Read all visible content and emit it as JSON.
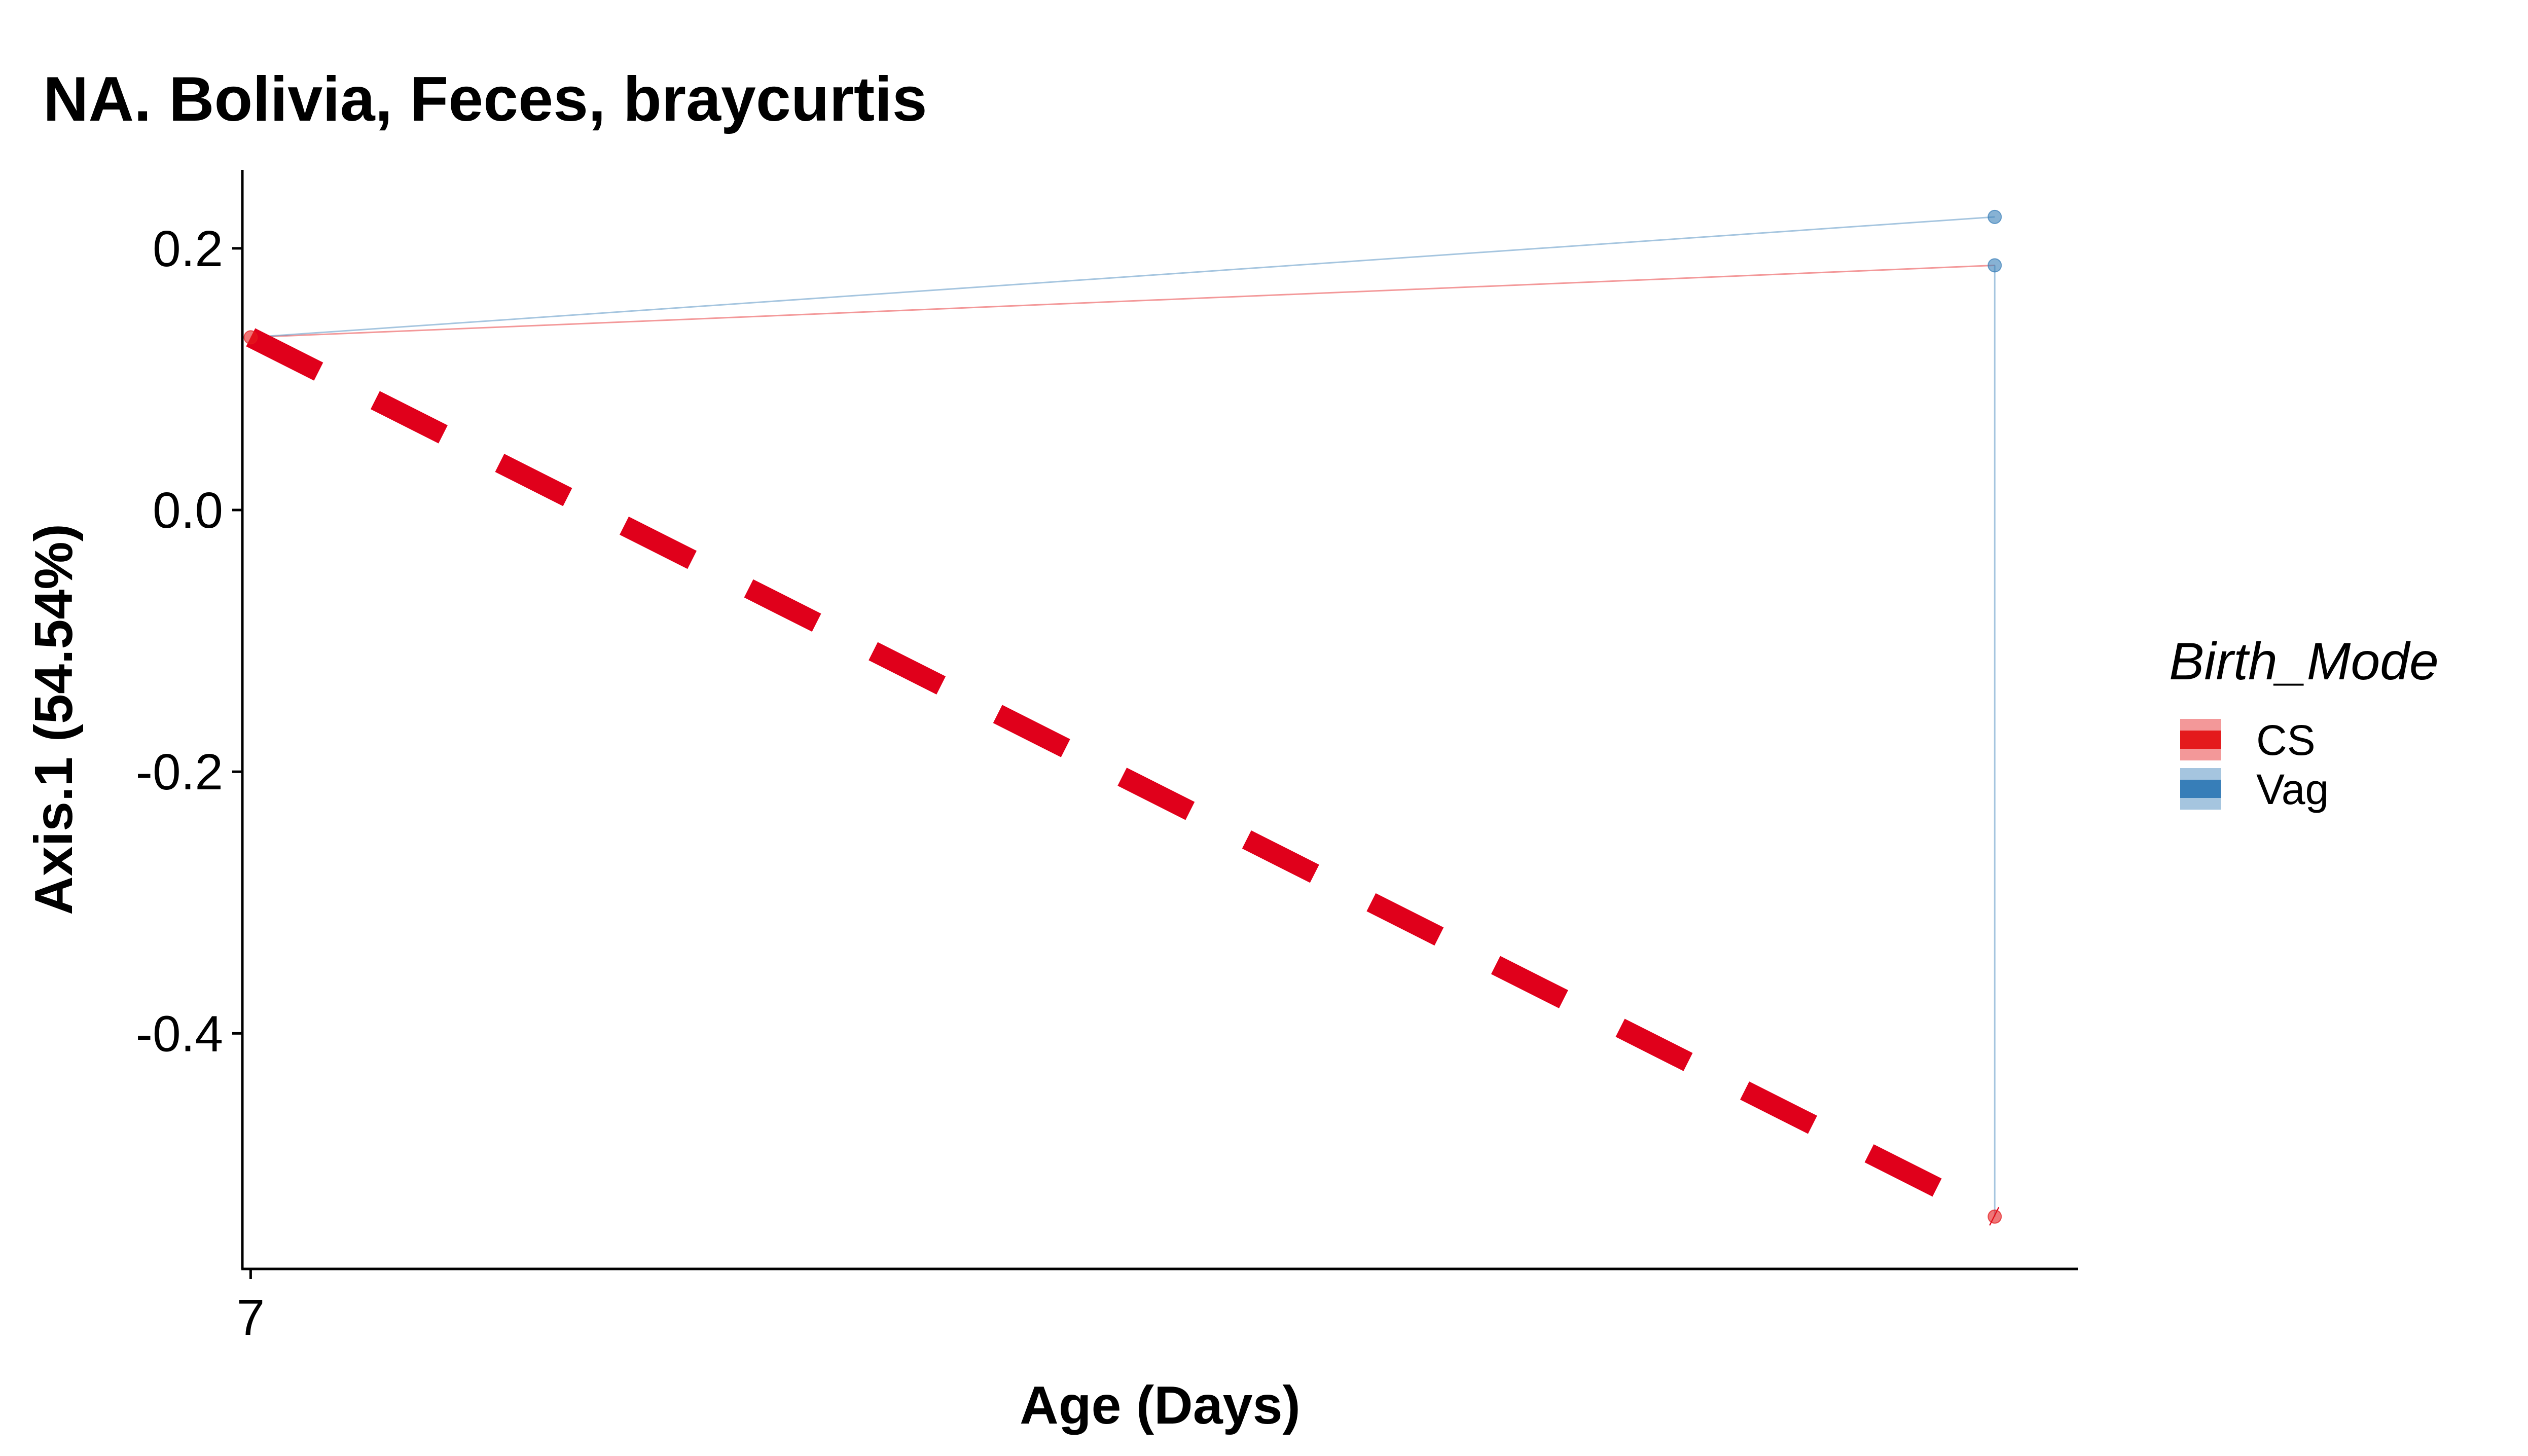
{
  "chart_data": {
    "type": "line",
    "title": "NA. Bolivia, Feces, braycurtis",
    "xlabel": "Age (Days)",
    "ylabel": "Axis.1 (54.54%)",
    "x_ticks": [
      {
        "value": 7,
        "label": "7"
      }
    ],
    "y_ticks": [
      {
        "value": 0.2,
        "label": "0.2"
      },
      {
        "value": 0.0,
        "label": "0.0"
      },
      {
        "value": -0.2,
        "label": "-0.2"
      },
      {
        "value": -0.4,
        "label": "-0.4"
      }
    ],
    "xlim": [
      6.95,
      18
    ],
    "ylim": [
      -0.58,
      0.26
    ],
    "grid": false,
    "legend": {
      "title": "Birth_Mode",
      "position": "right",
      "entries": [
        {
          "label": "CS",
          "color": "#E41A1C"
        },
        {
          "label": "Vag",
          "color": "#377EB8"
        }
      ]
    },
    "series": [
      {
        "name": "CS",
        "color": "#E41A1C",
        "points": [
          {
            "x": 7,
            "y": 0.132
          },
          {
            "x": 17.5,
            "y": -0.54
          }
        ],
        "trajectories": [
          [
            {
              "x": 7,
              "y": 0.132
            },
            {
              "x": 17.5,
              "y": 0.187
            }
          ]
        ],
        "trend": {
          "style": "dashed",
          "color": "#E0001B",
          "points": [
            {
              "x": 7,
              "y": 0.132
            },
            {
              "x": 17.5,
              "y": -0.54
            }
          ]
        }
      },
      {
        "name": "Vag",
        "color": "#377EB8",
        "points": [
          {
            "x": 17.5,
            "y": 0.224
          },
          {
            "x": 17.5,
            "y": 0.187
          }
        ],
        "trajectories": [
          [
            {
              "x": 7,
              "y": 0.132
            },
            {
              "x": 17.5,
              "y": 0.224
            }
          ],
          [
            {
              "x": 17.5,
              "y": 0.187
            },
            {
              "x": 17.5,
              "y": -0.54
            }
          ]
        ]
      }
    ]
  }
}
